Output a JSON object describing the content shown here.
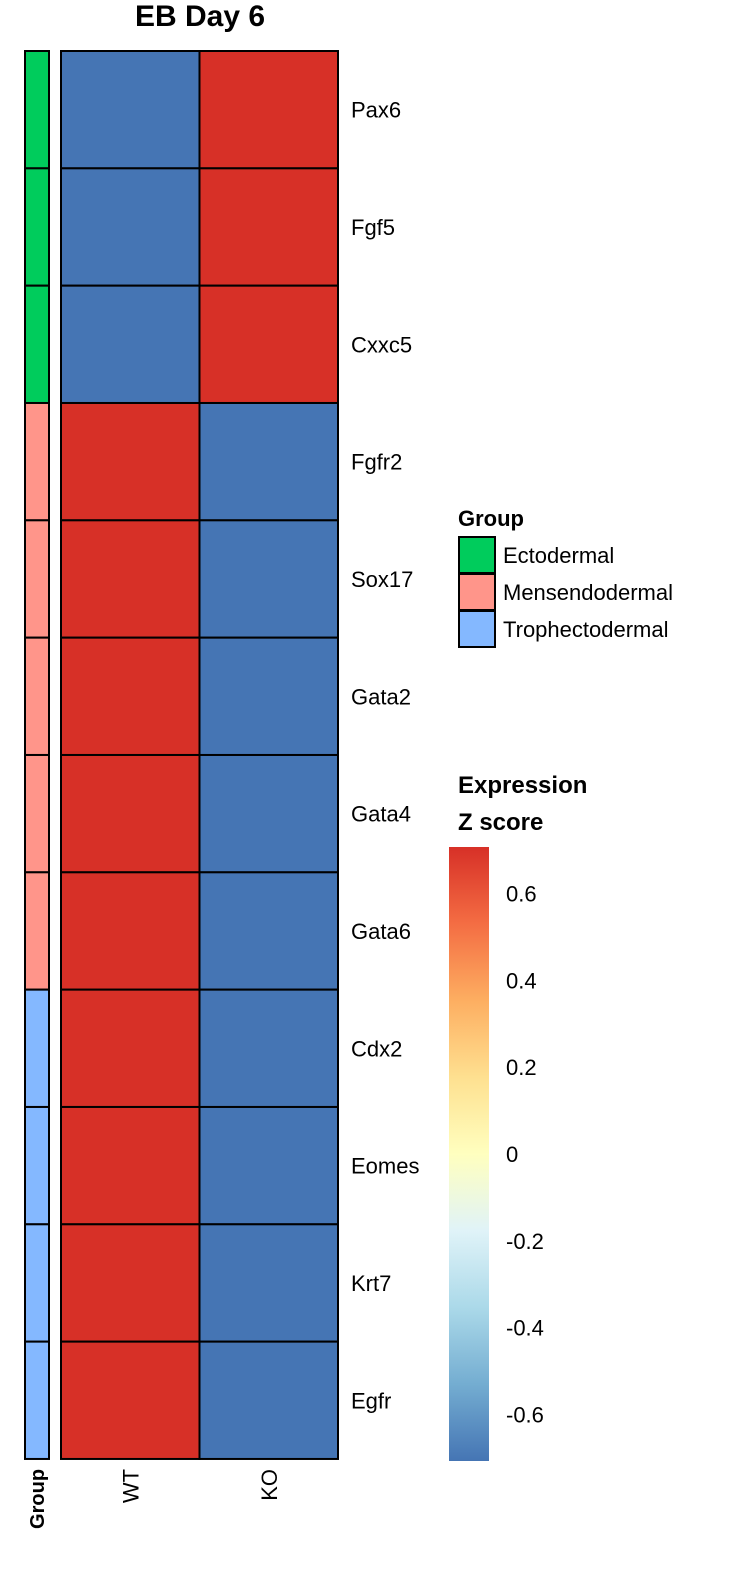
{
  "chart_data": {
    "type": "heatmap",
    "title": "EB Day 6",
    "columns": [
      "WT",
      "KO"
    ],
    "rows": [
      "Pax6",
      "Fgf5",
      "Cxxc5",
      "Fgfr2",
      "Sox17",
      "Gata2",
      "Gata4",
      "Gata6",
      "Cdx2",
      "Eomes",
      "Krt7",
      "Egfr"
    ],
    "row_groups": [
      "Ectodermal",
      "Ectodermal",
      "Ectodermal",
      "Mensendodermal",
      "Mensendodermal",
      "Mensendodermal",
      "Mensendodermal",
      "Mensendodermal",
      "Trophectodermal",
      "Trophectodermal",
      "Trophectodermal",
      "Trophectodermal"
    ],
    "values": [
      [
        -0.707,
        0.707
      ],
      [
        -0.707,
        0.707
      ],
      [
        -0.707,
        0.707
      ],
      [
        0.707,
        -0.707
      ],
      [
        0.707,
        -0.707
      ],
      [
        0.707,
        -0.707
      ],
      [
        0.707,
        -0.707
      ],
      [
        0.707,
        -0.707
      ],
      [
        0.707,
        -0.707
      ],
      [
        0.707,
        -0.707
      ],
      [
        0.707,
        -0.707
      ],
      [
        0.707,
        -0.707
      ]
    ],
    "annotation_label": "Group",
    "group_legend": {
      "title": "Group",
      "items": [
        {
          "label": "Ectodermal",
          "color": "#00cc5c"
        },
        {
          "label": "Mensendodermal",
          "color": "#ff958a"
        },
        {
          "label": "Trophectodermal",
          "color": "#84b8ff"
        }
      ]
    },
    "color_legend": {
      "title_line1": "Expression",
      "title_line2": "Z score",
      "range": [
        -0.707,
        0.707
      ],
      "ticks": [
        0.6,
        0.4,
        0.2,
        0,
        -0.2,
        -0.4,
        -0.6
      ],
      "tick_labels": [
        "0.6",
        "0.4",
        "0.2",
        "0",
        "-0.2",
        "-0.4",
        "-0.6"
      ],
      "colors": [
        "#4575b4",
        "#74add1",
        "#abd9e9",
        "#e0f3f8",
        "#ffffbf",
        "#fee090",
        "#fdae61",
        "#f46d43",
        "#d73027"
      ]
    },
    "cell_colors": {
      "high": "#d73027",
      "low": "#4575b4"
    }
  }
}
